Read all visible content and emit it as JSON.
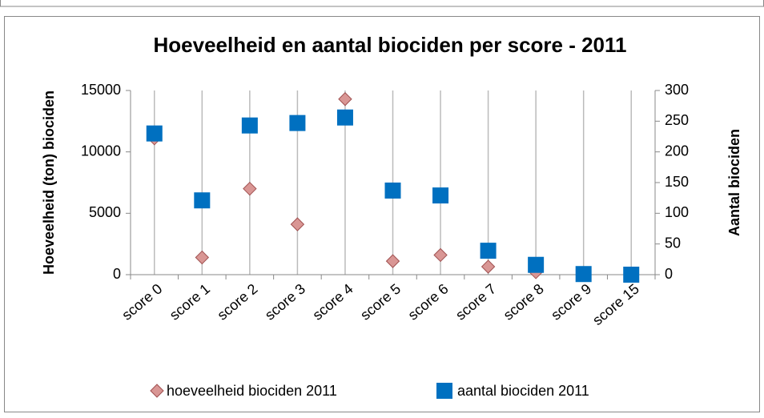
{
  "chart_data": {
    "type": "scatter",
    "title": "Hoeveelheid en aantal biociden per score - 2011",
    "ylabel": "Hoeveelheid (ton) biociden",
    "y2label": "Aantal biociden",
    "categories": [
      "score 0",
      "score 1",
      "score 2",
      "score 3",
      "score 4",
      "score 5",
      "score 6",
      "score 7",
      "score 8",
      "score 9",
      "score 15"
    ],
    "series": [
      {
        "name": "hoeveelheid biociden 2011",
        "color": "#d99694",
        "marker": "diamond",
        "values": [
          11100,
          1400,
          7000,
          4100,
          14300,
          1100,
          1600,
          650,
          200,
          50,
          20
        ]
      },
      {
        "name": "aantal biociden 2011",
        "color": "#0070c0",
        "marker": "square",
        "axis": "y2",
        "values": [
          230,
          121,
          243,
          247,
          256,
          137,
          129,
          39,
          16,
          1,
          0
        ]
      }
    ],
    "ylim": [
      0,
      15000
    ],
    "yticks": [
      0,
      5000,
      10000,
      15000
    ],
    "y2lim": [
      0,
      300
    ],
    "y2ticks": [
      0,
      50,
      100,
      150,
      200,
      250,
      300
    ],
    "grid": true,
    "legend": "bottom"
  }
}
